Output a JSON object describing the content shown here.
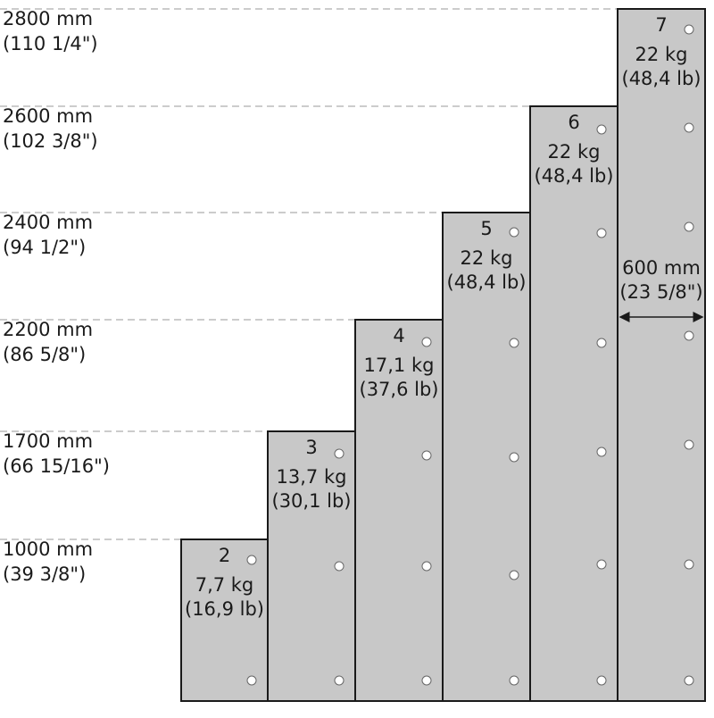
{
  "levels": [
    {
      "mm": "2800 mm",
      "inch": "(110 1/4\")"
    },
    {
      "mm": "2600 mm",
      "inch": "(102 3/8\")"
    },
    {
      "mm": "2400 mm",
      "inch": "(94 1/2\")"
    },
    {
      "mm": "2200 mm",
      "inch": "(86 5/8\")"
    },
    {
      "mm": "1700 mm",
      "inch": "(66 15/16\")"
    },
    {
      "mm": "1000 mm",
      "inch": "(39 3/8\")"
    }
  ],
  "panels": [
    {
      "number": "2",
      "weight_kg": "7,7 kg",
      "weight_lb": "(16,9 lb)"
    },
    {
      "number": "3",
      "weight_kg": "13,7 kg",
      "weight_lb": "(30,1 lb)"
    },
    {
      "number": "4",
      "weight_kg": "17,1 kg",
      "weight_lb": "(37,6 lb)"
    },
    {
      "number": "5",
      "weight_kg": "22 kg",
      "weight_lb": "(48,4 lb)"
    },
    {
      "number": "6",
      "weight_kg": "22 kg",
      "weight_lb": "(48,4 lb)"
    },
    {
      "number": "7",
      "weight_kg": "22 kg",
      "weight_lb": "(48,4 lb)"
    }
  ],
  "width": {
    "mm": "600 mm",
    "inch": "(23 5/8\")"
  }
}
